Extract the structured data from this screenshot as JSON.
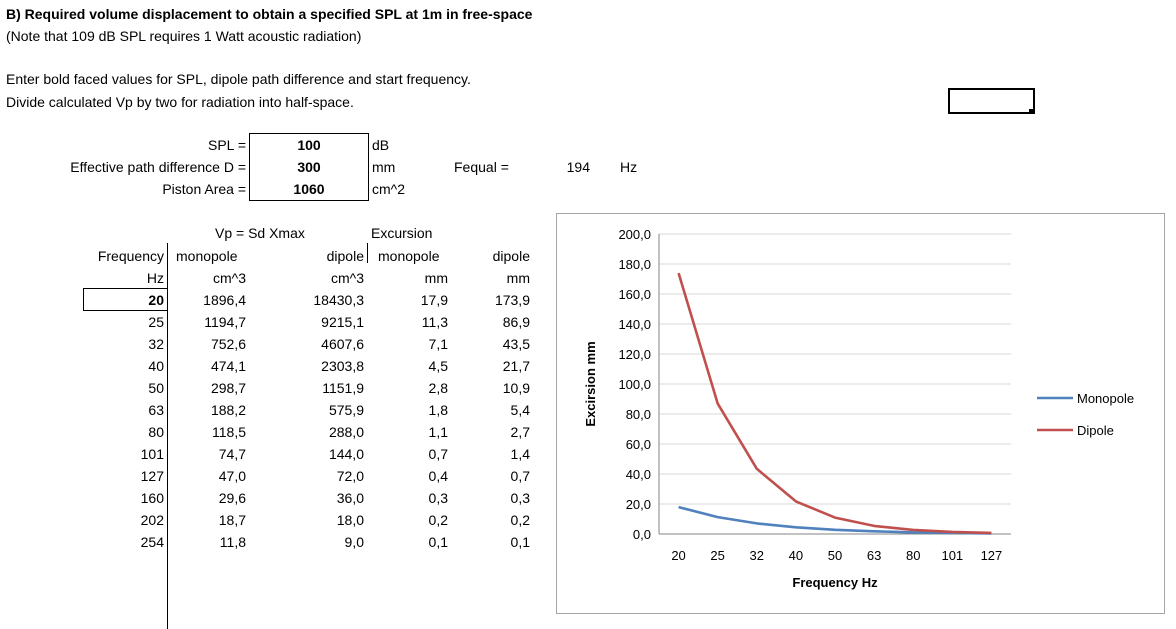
{
  "heading": {
    "title": "B) Required volume displacement to obtain a specified SPL at 1m in free-space",
    "note": "(Note that 109 dB SPL requires 1 Watt acoustic radiation)",
    "instruction1": "Enter bold faced values for SPL, dipole path difference and start frequency.",
    "instruction2": "Divide calculated Vp by two for radiation into half-space."
  },
  "inputs": {
    "spl": {
      "label": "SPL =",
      "value": "100",
      "unit": "dB"
    },
    "path": {
      "label": "Effective path difference D =",
      "value": "300",
      "unit": "mm"
    },
    "area": {
      "label": "Piston Area =",
      "value": "1060",
      "unit": "cm^2"
    },
    "fequal": {
      "label": "Fequal =",
      "value": "194",
      "unit": "Hz"
    }
  },
  "table": {
    "group_vp": "Vp = Sd Xmax",
    "group_exc": "Excursion",
    "col_headers": [
      "Frequency",
      "monopole",
      "dipole",
      "monopole",
      "dipole"
    ],
    "col_units": [
      "Hz",
      "cm^3",
      "cm^3",
      "mm",
      "mm"
    ],
    "rows": [
      [
        "20",
        "1896,4",
        "18430,3",
        "17,9",
        "173,9"
      ],
      [
        "25",
        "1194,7",
        "9215,1",
        "11,3",
        "86,9"
      ],
      [
        "32",
        "752,6",
        "4607,6",
        "7,1",
        "43,5"
      ],
      [
        "40",
        "474,1",
        "2303,8",
        "4,5",
        "21,7"
      ],
      [
        "50",
        "298,7",
        "1151,9",
        "2,8",
        "10,9"
      ],
      [
        "63",
        "188,2",
        "575,9",
        "1,8",
        "5,4"
      ],
      [
        "80",
        "118,5",
        "288,0",
        "1,1",
        "2,7"
      ],
      [
        "101",
        "74,7",
        "144,0",
        "0,7",
        "1,4"
      ],
      [
        "127",
        "47,0",
        "72,0",
        "0,4",
        "0,7"
      ],
      [
        "160",
        "29,6",
        "36,0",
        "0,3",
        "0,3"
      ],
      [
        "202",
        "18,7",
        "18,0",
        "0,2",
        "0,2"
      ],
      [
        "254",
        "11,8",
        "9,0",
        "0,1",
        "0,1"
      ]
    ]
  },
  "chart_data": {
    "type": "line",
    "categories": [
      "20",
      "25",
      "32",
      "40",
      "50",
      "63",
      "80",
      "101",
      "127"
    ],
    "series": [
      {
        "name": "Monopole",
        "color": "#4f81bd",
        "values": [
          17.9,
          11.3,
          7.1,
          4.5,
          2.8,
          1.8,
          1.1,
          0.7,
          0.4
        ]
      },
      {
        "name": "Dipole",
        "color": "#c0504d",
        "values": [
          173.9,
          86.9,
          43.5,
          21.7,
          10.9,
          5.4,
          2.7,
          1.4,
          0.7
        ]
      }
    ],
    "y_ticks": [
      "0,0",
      "20,0",
      "40,0",
      "60,0",
      "80,0",
      "100,0",
      "120,0",
      "140,0",
      "160,0",
      "180,0",
      "200,0"
    ],
    "ylim": [
      0,
      200
    ],
    "xlabel": "Frequency Hz",
    "ylabel": "Excirsion mm",
    "grid": true,
    "legend": "right"
  }
}
